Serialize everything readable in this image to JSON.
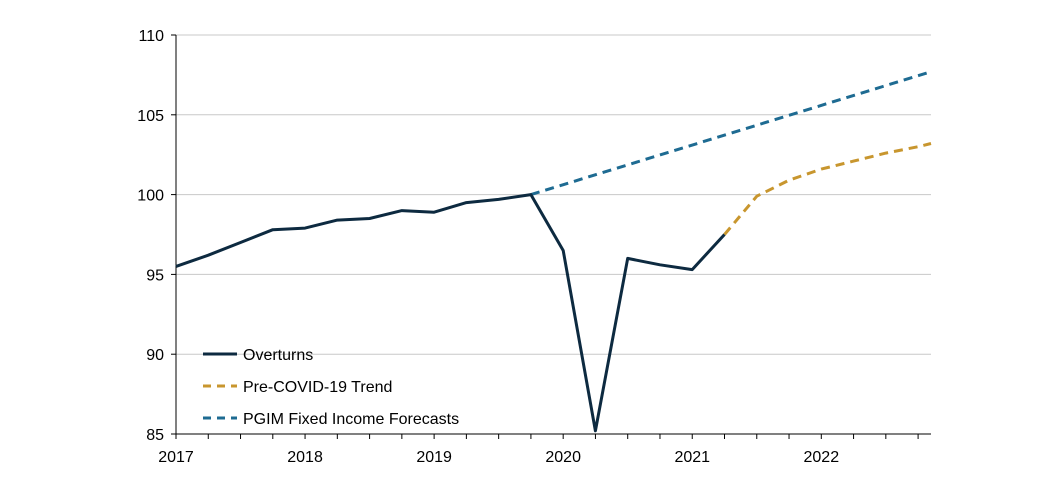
{
  "chart_data": {
    "type": "line",
    "title": "",
    "xlabel": "",
    "ylabel": "",
    "xlim": [
      2017.0,
      2022.85
    ],
    "ylim": [
      85,
      110
    ],
    "y_ticks": [
      85,
      90,
      95,
      100,
      105,
      110
    ],
    "x_ticks": [
      2017,
      2018,
      2019,
      2020,
      2021,
      2022
    ],
    "y_tick_labels": [
      "85",
      "90",
      "95",
      "100",
      "105",
      "110"
    ],
    "x_tick_labels": [
      "2017",
      "2018",
      "2019",
      "2020",
      "2021",
      "2022"
    ],
    "grid": "horizontal",
    "legend_position": "bottom-left",
    "series": [
      {
        "name": "Overturns",
        "color": "#0d2a40",
        "style": "solid",
        "x": [
          2017.0,
          2017.25,
          2017.5,
          2017.75,
          2018.0,
          2018.25,
          2018.5,
          2018.75,
          2019.0,
          2019.25,
          2019.5,
          2019.75,
          2020.0,
          2020.25,
          2020.5,
          2020.75,
          2021.0,
          2021.25
        ],
        "y": [
          95.5,
          96.2,
          97.0,
          97.8,
          97.9,
          98.4,
          98.5,
          99.0,
          98.9,
          99.5,
          99.7,
          100.0,
          96.5,
          85.2,
          96.0,
          95.6,
          95.3,
          97.5
        ]
      },
      {
        "name": "Pre-COVID-19 Trend",
        "color": "#c8962e",
        "style": "dashed",
        "x": [
          2021.25,
          2021.5,
          2021.75,
          2022.0,
          2022.25,
          2022.5,
          2022.75,
          2022.85
        ],
        "y": [
          97.5,
          99.9,
          100.9,
          101.6,
          102.1,
          102.6,
          103.0,
          103.2
        ]
      },
      {
        "name": "PGIM Fixed Income Forecasts",
        "color": "#1e6b92",
        "style": "dashed",
        "x": [
          2019.75,
          2022.85
        ],
        "y": [
          100.0,
          107.7
        ]
      }
    ]
  }
}
